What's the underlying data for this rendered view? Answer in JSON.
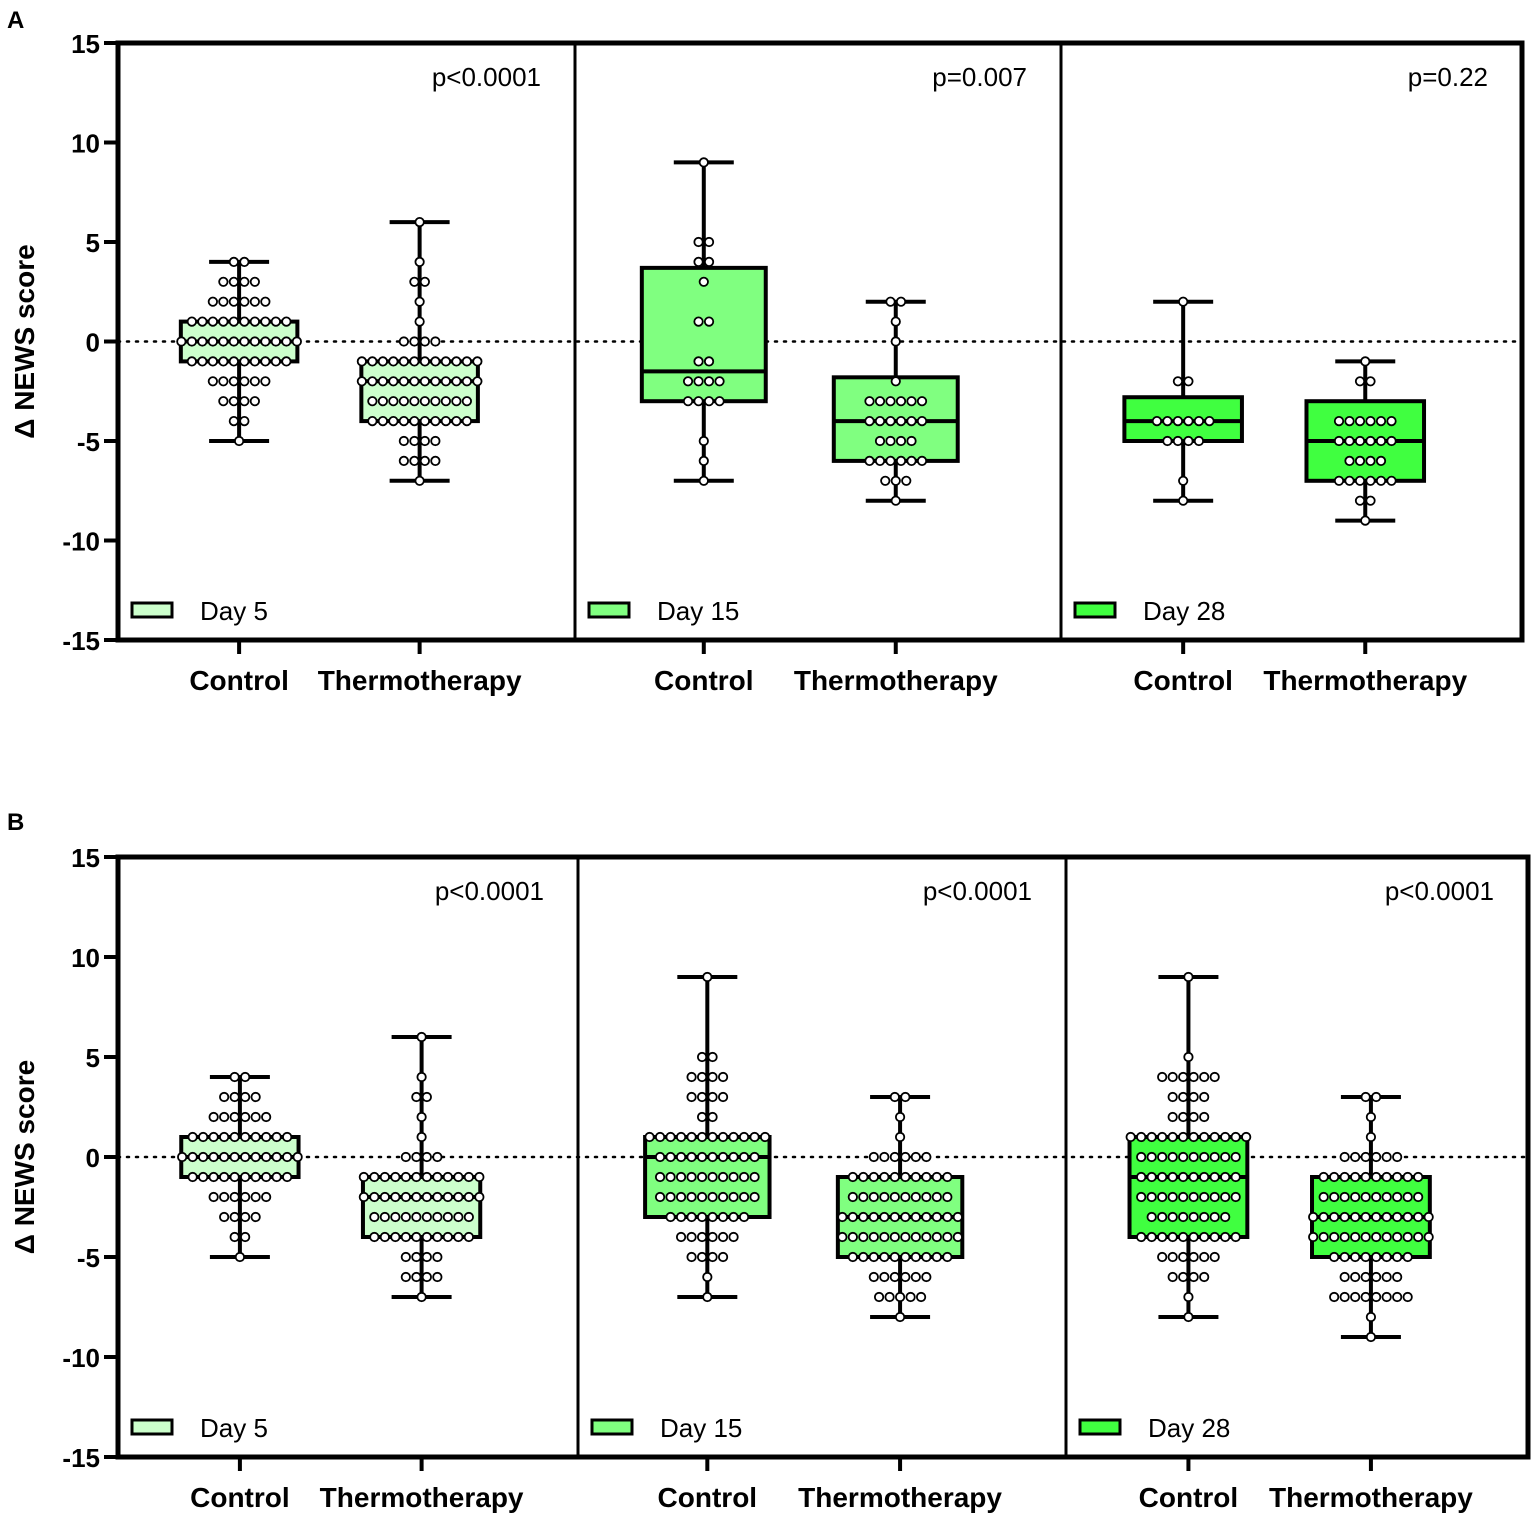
{
  "chart_data": [
    {
      "type": "box",
      "panel_label": "A",
      "ylabel": "Δ NEWS score",
      "ylim": [
        -15,
        15
      ],
      "yticks": [
        15,
        10,
        5,
        0,
        -5,
        -10,
        -15
      ],
      "reference_line": 0,
      "legend_position": "bottom-left of each sub-panel",
      "subpanels": [
        {
          "legend": "Day 5",
          "color": "#ccffcc",
          "p_value": "p<0.0001",
          "groups": [
            {
              "label": "Control",
              "min": -5,
              "q1": -1,
              "median": 0,
              "q3": 1,
              "max": 4,
              "points": [
                [
                  4,
                  2
                ],
                [
                  3,
                  4
                ],
                [
                  2,
                  6
                ],
                [
                  1,
                  10
                ],
                [
                  0,
                  12
                ],
                [
                  -1,
                  10
                ],
                [
                  -2,
                  6
                ],
                [
                  -3,
                  4
                ],
                [
                  -4,
                  2
                ],
                [
                  -5,
                  1
                ]
              ]
            },
            {
              "label": "Thermotherapy",
              "min": -7,
              "q1": -4,
              "median": -2,
              "q3": -1,
              "max": 6,
              "points": [
                [
                  6,
                  1
                ],
                [
                  4,
                  1
                ],
                [
                  3,
                  2
                ],
                [
                  2,
                  1
                ],
                [
                  1,
                  1
                ],
                [
                  0,
                  4
                ],
                [
                  -1,
                  12
                ],
                [
                  -2,
                  12
                ],
                [
                  -3,
                  10
                ],
                [
                  -4,
                  10
                ],
                [
                  -5,
                  4
                ],
                [
                  -6,
                  4
                ],
                [
                  -7,
                  1
                ]
              ]
            }
          ]
        },
        {
          "legend": "Day 15",
          "color": "#80ff80",
          "p_value": "p=0.007",
          "groups": [
            {
              "label": "Control",
              "min": -7,
              "q1": -3,
              "median": -1.5,
              "q3": 3.7,
              "max": 9,
              "points": [
                [
                  9,
                  1
                ],
                [
                  5,
                  2
                ],
                [
                  4,
                  2
                ],
                [
                  3,
                  1
                ],
                [
                  1,
                  2
                ],
                [
                  -1,
                  2
                ],
                [
                  -2,
                  4
                ],
                [
                  -3,
                  4
                ],
                [
                  -5,
                  1
                ],
                [
                  -6,
                  1
                ],
                [
                  -7,
                  1
                ]
              ]
            },
            {
              "label": "Thermotherapy",
              "min": -8,
              "q1": -6,
              "median": -4,
              "q3": -1.8,
              "max": 2,
              "points": [
                [
                  2,
                  2
                ],
                [
                  1,
                  1
                ],
                [
                  0,
                  1
                ],
                [
                  -2,
                  1
                ],
                [
                  -3,
                  6
                ],
                [
                  -4,
                  6
                ],
                [
                  -5,
                  4
                ],
                [
                  -6,
                  6
                ],
                [
                  -7,
                  3
                ],
                [
                  -8,
                  1
                ]
              ]
            }
          ]
        },
        {
          "legend": "Day 28",
          "color": "#40ff40",
          "p_value": "p=0.22",
          "groups": [
            {
              "label": "Control",
              "min": -8,
              "q1": -5,
              "median": -4,
              "q3": -2.8,
              "max": 2,
              "points": [
                [
                  2,
                  1
                ],
                [
                  -2,
                  2
                ],
                [
                  -4,
                  6
                ],
                [
                  -5,
                  4
                ],
                [
                  -7,
                  1
                ],
                [
                  -8,
                  1
                ]
              ]
            },
            {
              "label": "Thermotherapy",
              "min": -9,
              "q1": -7,
              "median": -5,
              "q3": -3,
              "max": -1,
              "points": [
                [
                  -1,
                  1
                ],
                [
                  -2,
                  2
                ],
                [
                  -4,
                  6
                ],
                [
                  -5,
                  6
                ],
                [
                  -6,
                  4
                ],
                [
                  -7,
                  6
                ],
                [
                  -8,
                  2
                ],
                [
                  -9,
                  1
                ]
              ]
            }
          ]
        }
      ]
    },
    {
      "type": "box",
      "panel_label": "B",
      "ylabel": "Δ NEWS score",
      "ylim": [
        -15,
        15
      ],
      "yticks": [
        15,
        10,
        5,
        0,
        -5,
        -10,
        -15
      ],
      "reference_line": 0,
      "legend_position": "bottom-left of each sub-panel",
      "subpanels": [
        {
          "legend": "Day 5",
          "color": "#ccffcc",
          "p_value": "p<0.0001",
          "groups": [
            {
              "label": "Control",
              "min": -5,
              "q1": -1,
              "median": 0,
              "q3": 1,
              "max": 4,
              "points": [
                [
                  4,
                  2
                ],
                [
                  3,
                  4
                ],
                [
                  2,
                  6
                ],
                [
                  1,
                  10
                ],
                [
                  0,
                  12
                ],
                [
                  -1,
                  10
                ],
                [
                  -2,
                  6
                ],
                [
                  -3,
                  4
                ],
                [
                  -4,
                  2
                ],
                [
                  -5,
                  1
                ]
              ]
            },
            {
              "label": "Thermotherapy",
              "min": -7,
              "q1": -4,
              "median": -2,
              "q3": -1,
              "max": 6,
              "points": [
                [
                  6,
                  1
                ],
                [
                  4,
                  1
                ],
                [
                  3,
                  2
                ],
                [
                  2,
                  1
                ],
                [
                  1,
                  1
                ],
                [
                  0,
                  4
                ],
                [
                  -1,
                  12
                ],
                [
                  -2,
                  12
                ],
                [
                  -3,
                  10
                ],
                [
                  -4,
                  10
                ],
                [
                  -5,
                  4
                ],
                [
                  -6,
                  4
                ],
                [
                  -7,
                  1
                ]
              ]
            }
          ]
        },
        {
          "legend": "Day 15",
          "color": "#80ff80",
          "p_value": "p<0.0001",
          "groups": [
            {
              "label": "Control",
              "min": -7,
              "q1": -3,
              "median": 0,
              "q3": 1,
              "max": 9,
              "points": [
                [
                  9,
                  1
                ],
                [
                  5,
                  2
                ],
                [
                  4,
                  4
                ],
                [
                  3,
                  4
                ],
                [
                  2,
                  2
                ],
                [
                  1,
                  12
                ],
                [
                  0,
                  10
                ],
                [
                  -1,
                  10
                ],
                [
                  -2,
                  10
                ],
                [
                  -3,
                  8
                ],
                [
                  -4,
                  6
                ],
                [
                  -5,
                  4
                ],
                [
                  -6,
                  1
                ],
                [
                  -7,
                  1
                ]
              ]
            },
            {
              "label": "Thermotherapy",
              "min": -8,
              "q1": -5,
              "median": -3,
              "q3": -1,
              "max": 3,
              "points": [
                [
                  3,
                  2
                ],
                [
                  2,
                  1
                ],
                [
                  1,
                  1
                ],
                [
                  0,
                  6
                ],
                [
                  -1,
                  10
                ],
                [
                  -2,
                  10
                ],
                [
                  -3,
                  12
                ],
                [
                  -4,
                  12
                ],
                [
                  -5,
                  10
                ],
                [
                  -6,
                  6
                ],
                [
                  -7,
                  5
                ],
                [
                  -8,
                  1
                ]
              ]
            }
          ]
        },
        {
          "legend": "Day 28",
          "color": "#40ff40",
          "p_value": "p<0.0001",
          "groups": [
            {
              "label": "Control",
              "min": -8,
              "q1": -4,
              "median": -1,
              "q3": 1,
              "max": 9,
              "points": [
                [
                  9,
                  1
                ],
                [
                  5,
                  1
                ],
                [
                  4,
                  6
                ],
                [
                  3,
                  4
                ],
                [
                  2,
                  4
                ],
                [
                  1,
                  12
                ],
                [
                  0,
                  10
                ],
                [
                  -1,
                  10
                ],
                [
                  -2,
                  10
                ],
                [
                  -3,
                  8
                ],
                [
                  -4,
                  10
                ],
                [
                  -5,
                  6
                ],
                [
                  -6,
                  4
                ],
                [
                  -7,
                  1
                ],
                [
                  -8,
                  1
                ]
              ]
            },
            {
              "label": "Thermotherapy",
              "min": -9,
              "q1": -5,
              "median": -3,
              "q3": -1,
              "max": 3,
              "points": [
                [
                  3,
                  2
                ],
                [
                  2,
                  1
                ],
                [
                  1,
                  1
                ],
                [
                  0,
                  6
                ],
                [
                  -1,
                  10
                ],
                [
                  -2,
                  10
                ],
                [
                  -3,
                  12
                ],
                [
                  -4,
                  12
                ],
                [
                  -5,
                  8
                ],
                [
                  -6,
                  6
                ],
                [
                  -7,
                  8
                ],
                [
                  -8,
                  1
                ],
                [
                  -9,
                  1
                ]
              ]
            }
          ]
        }
      ]
    }
  ]
}
